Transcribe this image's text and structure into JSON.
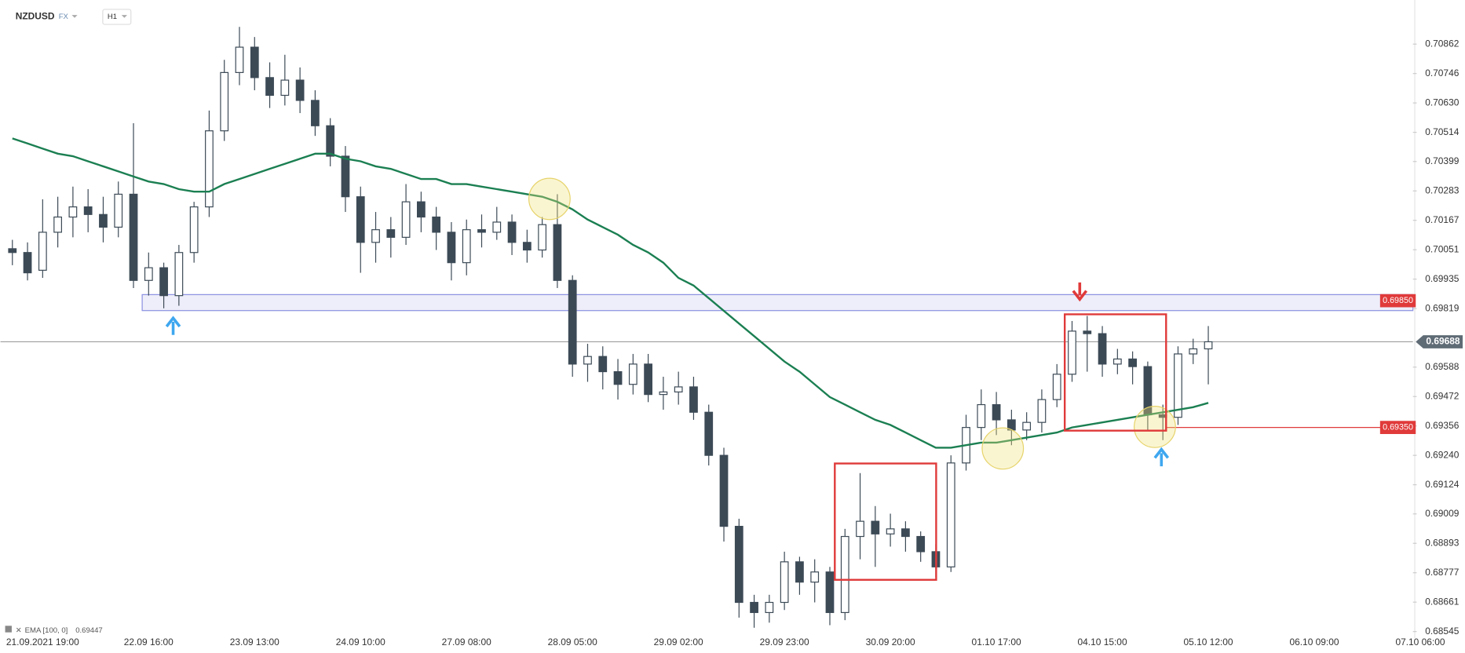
{
  "chart_data": {
    "type": "candlestick",
    "title": "NZDUSD",
    "market": "FX",
    "timeframe": "H1",
    "categories": [
      null,
      null,
      "21.09.2021 19:00",
      null,
      null,
      null,
      null,
      null,
      null,
      "22.09 16:00",
      null,
      null,
      null,
      null,
      null,
      null,
      "23.09 13:00",
      null,
      null,
      null,
      null,
      null,
      null,
      "24.09 10:00",
      null,
      null,
      null,
      null,
      null,
      null,
      "27.09 08:00",
      null,
      null,
      null,
      null,
      null,
      null,
      "28.09 05:00",
      null,
      null,
      null,
      null,
      null,
      null,
      "29.09 02:00",
      null,
      null,
      null,
      null,
      null,
      null,
      "29.09 23:00",
      null,
      null,
      null,
      null,
      null,
      null,
      "30.09 20:00",
      null,
      null,
      null,
      null,
      null,
      null,
      "01.10 17:00",
      null,
      null,
      null,
      null,
      null,
      null,
      "04.10 15:00",
      null,
      null,
      null,
      null,
      null,
      null,
      "05.10 12:00",
      null,
      null,
      null,
      null,
      null,
      null,
      "06.10 09:00",
      null,
      null,
      null,
      null,
      null,
      null,
      "07.10 06:00"
    ],
    "candles": {
      "open": [
        0.70055,
        0.7004,
        0.6997,
        0.7012,
        0.7018,
        0.7022,
        0.7019,
        0.7014,
        0.7027,
        0.6993,
        0.6998,
        0.6987,
        0.7004,
        0.7022,
        0.7052,
        0.7075,
        0.7085,
        0.7073,
        0.7066,
        0.7072,
        0.7064,
        0.7054,
        0.7042,
        0.7026,
        0.7008,
        0.7013,
        0.701,
        0.7024,
        0.7018,
        0.7012,
        0.7,
        0.7013,
        0.7012,
        0.7016,
        0.7008,
        0.7005,
        0.7015,
        0.6993,
        0.696,
        0.6963,
        0.6957,
        0.6952,
        0.696,
        0.6948,
        0.6949,
        0.6951,
        0.6941,
        0.6924,
        0.6896,
        0.6866,
        0.6862,
        0.6866,
        0.6882,
        0.6874,
        0.6878,
        0.6862,
        0.6892,
        0.6898,
        0.6893,
        0.6895,
        0.6892,
        0.6886,
        0.688,
        0.6921,
        0.6935,
        0.6944,
        0.6938,
        0.6934,
        0.6937,
        0.6946,
        0.6956,
        0.6973,
        0.6972,
        0.696,
        0.6962,
        0.6959,
        0.694,
        0.6939,
        0.6964,
        0.6966,
        null,
        null,
        null,
        null,
        null,
        null,
        null,
        null,
        null,
        null,
        null,
        null,
        null,
        null
      ],
      "high": [
        0.7009,
        0.7008,
        0.7025,
        0.7026,
        0.703,
        0.7029,
        0.7026,
        0.7032,
        0.7055,
        0.7004,
        0.7,
        0.7007,
        0.7024,
        0.706,
        0.708,
        0.7093,
        0.7089,
        0.7079,
        0.7082,
        0.7077,
        0.7068,
        0.7057,
        0.7046,
        0.703,
        0.702,
        0.7018,
        0.7031,
        0.7028,
        0.7022,
        0.7016,
        0.7017,
        0.7019,
        0.7022,
        0.7019,
        0.7013,
        0.7018,
        0.7027,
        0.6995,
        0.6968,
        0.6967,
        0.6962,
        0.6964,
        0.6964,
        0.6955,
        0.6957,
        0.6955,
        0.6944,
        0.6927,
        0.6899,
        0.6869,
        0.6869,
        0.6886,
        0.6884,
        0.6883,
        0.688,
        0.6895,
        0.6917,
        0.6904,
        0.6901,
        0.6898,
        0.6894,
        0.6889,
        0.6924,
        0.694,
        0.695,
        0.6949,
        0.6942,
        0.6941,
        0.695,
        0.696,
        0.6977,
        0.6979,
        0.6975,
        0.6966,
        0.6965,
        0.6961,
        0.6944,
        0.6967,
        0.697,
        0.6975,
        null,
        null,
        null,
        null,
        null,
        null,
        null,
        null,
        null,
        null,
        null,
        null,
        null,
        null
      ],
      "low": [
        0.6999,
        0.6993,
        0.6994,
        0.7006,
        0.701,
        0.7012,
        0.7008,
        0.701,
        0.699,
        0.6987,
        0.6982,
        0.6983,
        0.7,
        0.7018,
        0.7048,
        0.707,
        0.7068,
        0.7061,
        0.7062,
        0.7059,
        0.705,
        0.7038,
        0.702,
        0.6996,
        0.7,
        0.7002,
        0.7007,
        0.7012,
        0.7005,
        0.6993,
        0.6995,
        0.7006,
        0.7009,
        0.7003,
        0.7,
        0.7002,
        0.699,
        0.6955,
        0.6953,
        0.695,
        0.6946,
        0.6948,
        0.6945,
        0.6942,
        0.6944,
        0.6938,
        0.692,
        0.689,
        0.686,
        0.6856,
        0.6858,
        0.6863,
        0.6869,
        0.6866,
        0.6857,
        0.6859,
        0.6883,
        0.688,
        0.6888,
        0.6886,
        0.6882,
        0.6876,
        0.6878,
        0.6918,
        0.693,
        0.6932,
        0.6928,
        0.693,
        0.6933,
        0.6943,
        0.6953,
        0.6957,
        0.6955,
        0.6956,
        0.6952,
        0.6934,
        0.693,
        0.6936,
        0.696,
        0.6952,
        null,
        null,
        null,
        null,
        null,
        null,
        null,
        null,
        null,
        null,
        null,
        null,
        null,
        null
      ],
      "close": [
        0.7004,
        0.6996,
        0.7012,
        0.7018,
        0.7022,
        0.7019,
        0.7014,
        0.7027,
        0.6993,
        0.6998,
        0.6987,
        0.7004,
        0.7022,
        0.7052,
        0.7075,
        0.7085,
        0.7073,
        0.7066,
        0.7072,
        0.7064,
        0.7054,
        0.7042,
        0.7026,
        0.7008,
        0.7013,
        0.701,
        0.7024,
        0.7018,
        0.7012,
        0.7,
        0.7013,
        0.7012,
        0.7016,
        0.7008,
        0.7005,
        0.7015,
        0.6993,
        0.696,
        0.6963,
        0.6957,
        0.6952,
        0.696,
        0.6948,
        0.6949,
        0.6951,
        0.6941,
        0.6924,
        0.6896,
        0.6866,
        0.6862,
        0.6866,
        0.6882,
        0.6874,
        0.6878,
        0.6862,
        0.6892,
        0.6898,
        0.6893,
        0.6895,
        0.6892,
        0.6886,
        0.688,
        0.6921,
        0.6935,
        0.6944,
        0.6938,
        0.6934,
        0.6937,
        0.6946,
        0.6956,
        0.6973,
        0.6972,
        0.696,
        0.6962,
        0.6959,
        0.694,
        0.6939,
        0.6964,
        0.6966,
        0.69688,
        null,
        null,
        null,
        null,
        null,
        null,
        null,
        null,
        null,
        null,
        null,
        null,
        null,
        null
      ],
      "up_color": "#ffffff",
      "down_color": "#3c4a56",
      "edge_color": "#3c4a56"
    },
    "series": [
      {
        "name": "EMA [100, 0]",
        "color": "#1b7f52",
        "last_value": 0.69447,
        "values": [
          0.7049,
          0.7047,
          0.7045,
          0.7043,
          0.7042,
          0.704,
          0.7038,
          0.7036,
          0.7034,
          0.7032,
          0.7031,
          0.7029,
          0.7028,
          0.7028,
          0.7031,
          0.7033,
          0.7035,
          0.7037,
          0.7039,
          0.7041,
          0.7043,
          0.7043,
          0.7041,
          0.704,
          0.7038,
          0.7037,
          0.7035,
          0.7033,
          0.7033,
          0.7031,
          0.7031,
          0.703,
          0.7029,
          0.7028,
          0.7027,
          0.7026,
          0.7024,
          0.7021,
          0.7017,
          0.7014,
          0.7011,
          0.7007,
          0.7004,
          0.7,
          0.6994,
          0.6991,
          0.6986,
          0.6981,
          0.6976,
          0.6971,
          0.6966,
          0.6961,
          0.6957,
          0.6952,
          0.6947,
          0.6944,
          0.6941,
          0.6938,
          0.6936,
          0.6933,
          0.693,
          0.6927,
          0.6927,
          0.6928,
          0.6929,
          0.6929,
          0.693,
          0.6931,
          0.6932,
          0.6933,
          0.6935,
          0.6936,
          0.6937,
          0.6938,
          0.6939,
          0.694,
          0.6941,
          0.6942,
          0.6943,
          0.69447,
          null,
          null,
          null,
          null,
          null,
          null,
          null,
          null,
          null,
          null,
          null,
          null,
          null,
          null
        ]
      }
    ],
    "ylim": [
      0.68527,
      0.71036
    ],
    "yticks": [
      0.70862,
      0.70746,
      {
        "value": 0.7063,
        "label": "0.70630"
      },
      0.70514,
      0.70399,
      0.70283,
      0.70167,
      0.70051,
      0.69935,
      0.69819,
      0.69588,
      0.69472,
      0.69356,
      {
        "value": 0.6924,
        "label": "0.69240"
      },
      0.69124,
      0.69009,
      0.68893,
      0.68777,
      0.68661,
      0.68545
    ],
    "grid": false,
    "last_price": 0.69688,
    "levels": [
      {
        "value": 0.6985,
        "label": "0.69850",
        "color": "#e03a3a"
      },
      {
        "value": 0.6935,
        "label": "0.69350",
        "color": "#e03a3a"
      }
    ],
    "zone": [
      0.69811,
      0.69874
    ],
    "zone_color": "#8a8fe0"
  }
}
